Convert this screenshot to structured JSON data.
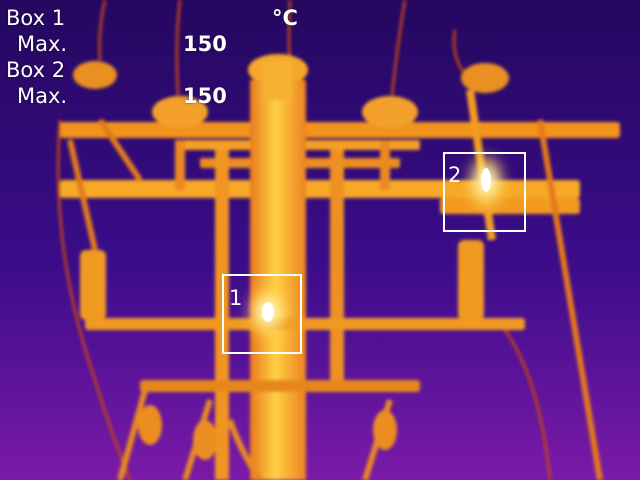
{
  "image": {
    "kind": "thermal-infrared-photo",
    "subject": "utility-pole-crossarm-with-cutouts",
    "palette": "ironbow",
    "colors": {
      "cold": "#2a0a6e",
      "mid": "#c0309a",
      "warm": "#f08a1c",
      "hot": "#ffd24a",
      "hottest": "#ffffff"
    }
  },
  "readout": {
    "unit": "°C",
    "boxes": [
      {
        "title": "Box 1",
        "stat_label": "Max.",
        "value": "150",
        "roi_label": "1"
      },
      {
        "title": "Box 2",
        "stat_label": "Max.",
        "value": "150",
        "roi_label": "2"
      }
    ]
  }
}
